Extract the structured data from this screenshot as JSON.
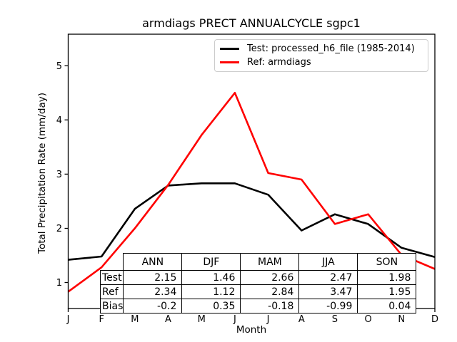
{
  "title": "armdiags PRECT ANNUALCYCLE sgpc1",
  "chart_data": {
    "type": "line",
    "title": "armdiags PRECT ANNUALCYCLE sgpc1",
    "xlabel": "Month",
    "ylabel": "Total Precipitation Rate (mm/day)",
    "x_ticklabels": [
      "J",
      "F",
      "M",
      "A",
      "M",
      "J",
      "J",
      "A",
      "S",
      "O",
      "N",
      "D"
    ],
    "y_ticks": [
      "1",
      "2",
      "3",
      "4",
      "5"
    ],
    "ylim": [
      0.52,
      5.58
    ],
    "xlim_months": [
      1,
      12
    ],
    "grid": false,
    "legend_position": "upper right",
    "series": [
      {
        "name": "Test: processed_h6_file (1985-2014)",
        "color": "#000000",
        "values": [
          1.42,
          1.48,
          2.36,
          2.79,
          2.83,
          2.83,
          2.62,
          1.96,
          2.26,
          2.08,
          1.64,
          1.47
        ]
      },
      {
        "name": "Ref: armdiags",
        "color": "#ff0000",
        "values": [
          0.83,
          1.28,
          2.0,
          2.8,
          3.72,
          4.5,
          3.02,
          2.9,
          2.08,
          2.26,
          1.51,
          1.25
        ]
      }
    ]
  },
  "legend": {
    "items": [
      {
        "label": "Test: processed_h6_file (1985-2014)",
        "color": "#000000"
      },
      {
        "label": "Ref: armdiags",
        "color": "#ff0000"
      }
    ]
  },
  "table": {
    "columns": [
      "ANN",
      "DJF",
      "MAM",
      "JJA",
      "SON"
    ],
    "rows": [
      {
        "label": "Test",
        "values": [
          "2.15",
          "1.46",
          "2.66",
          "2.47",
          "1.98"
        ]
      },
      {
        "label": "Ref",
        "values": [
          "2.34",
          "1.12",
          "2.84",
          "3.47",
          "1.95"
        ]
      },
      {
        "label": "Bias",
        "values": [
          "-0.2",
          "0.35",
          "-0.18",
          "-0.99",
          "0.04"
        ]
      }
    ]
  }
}
